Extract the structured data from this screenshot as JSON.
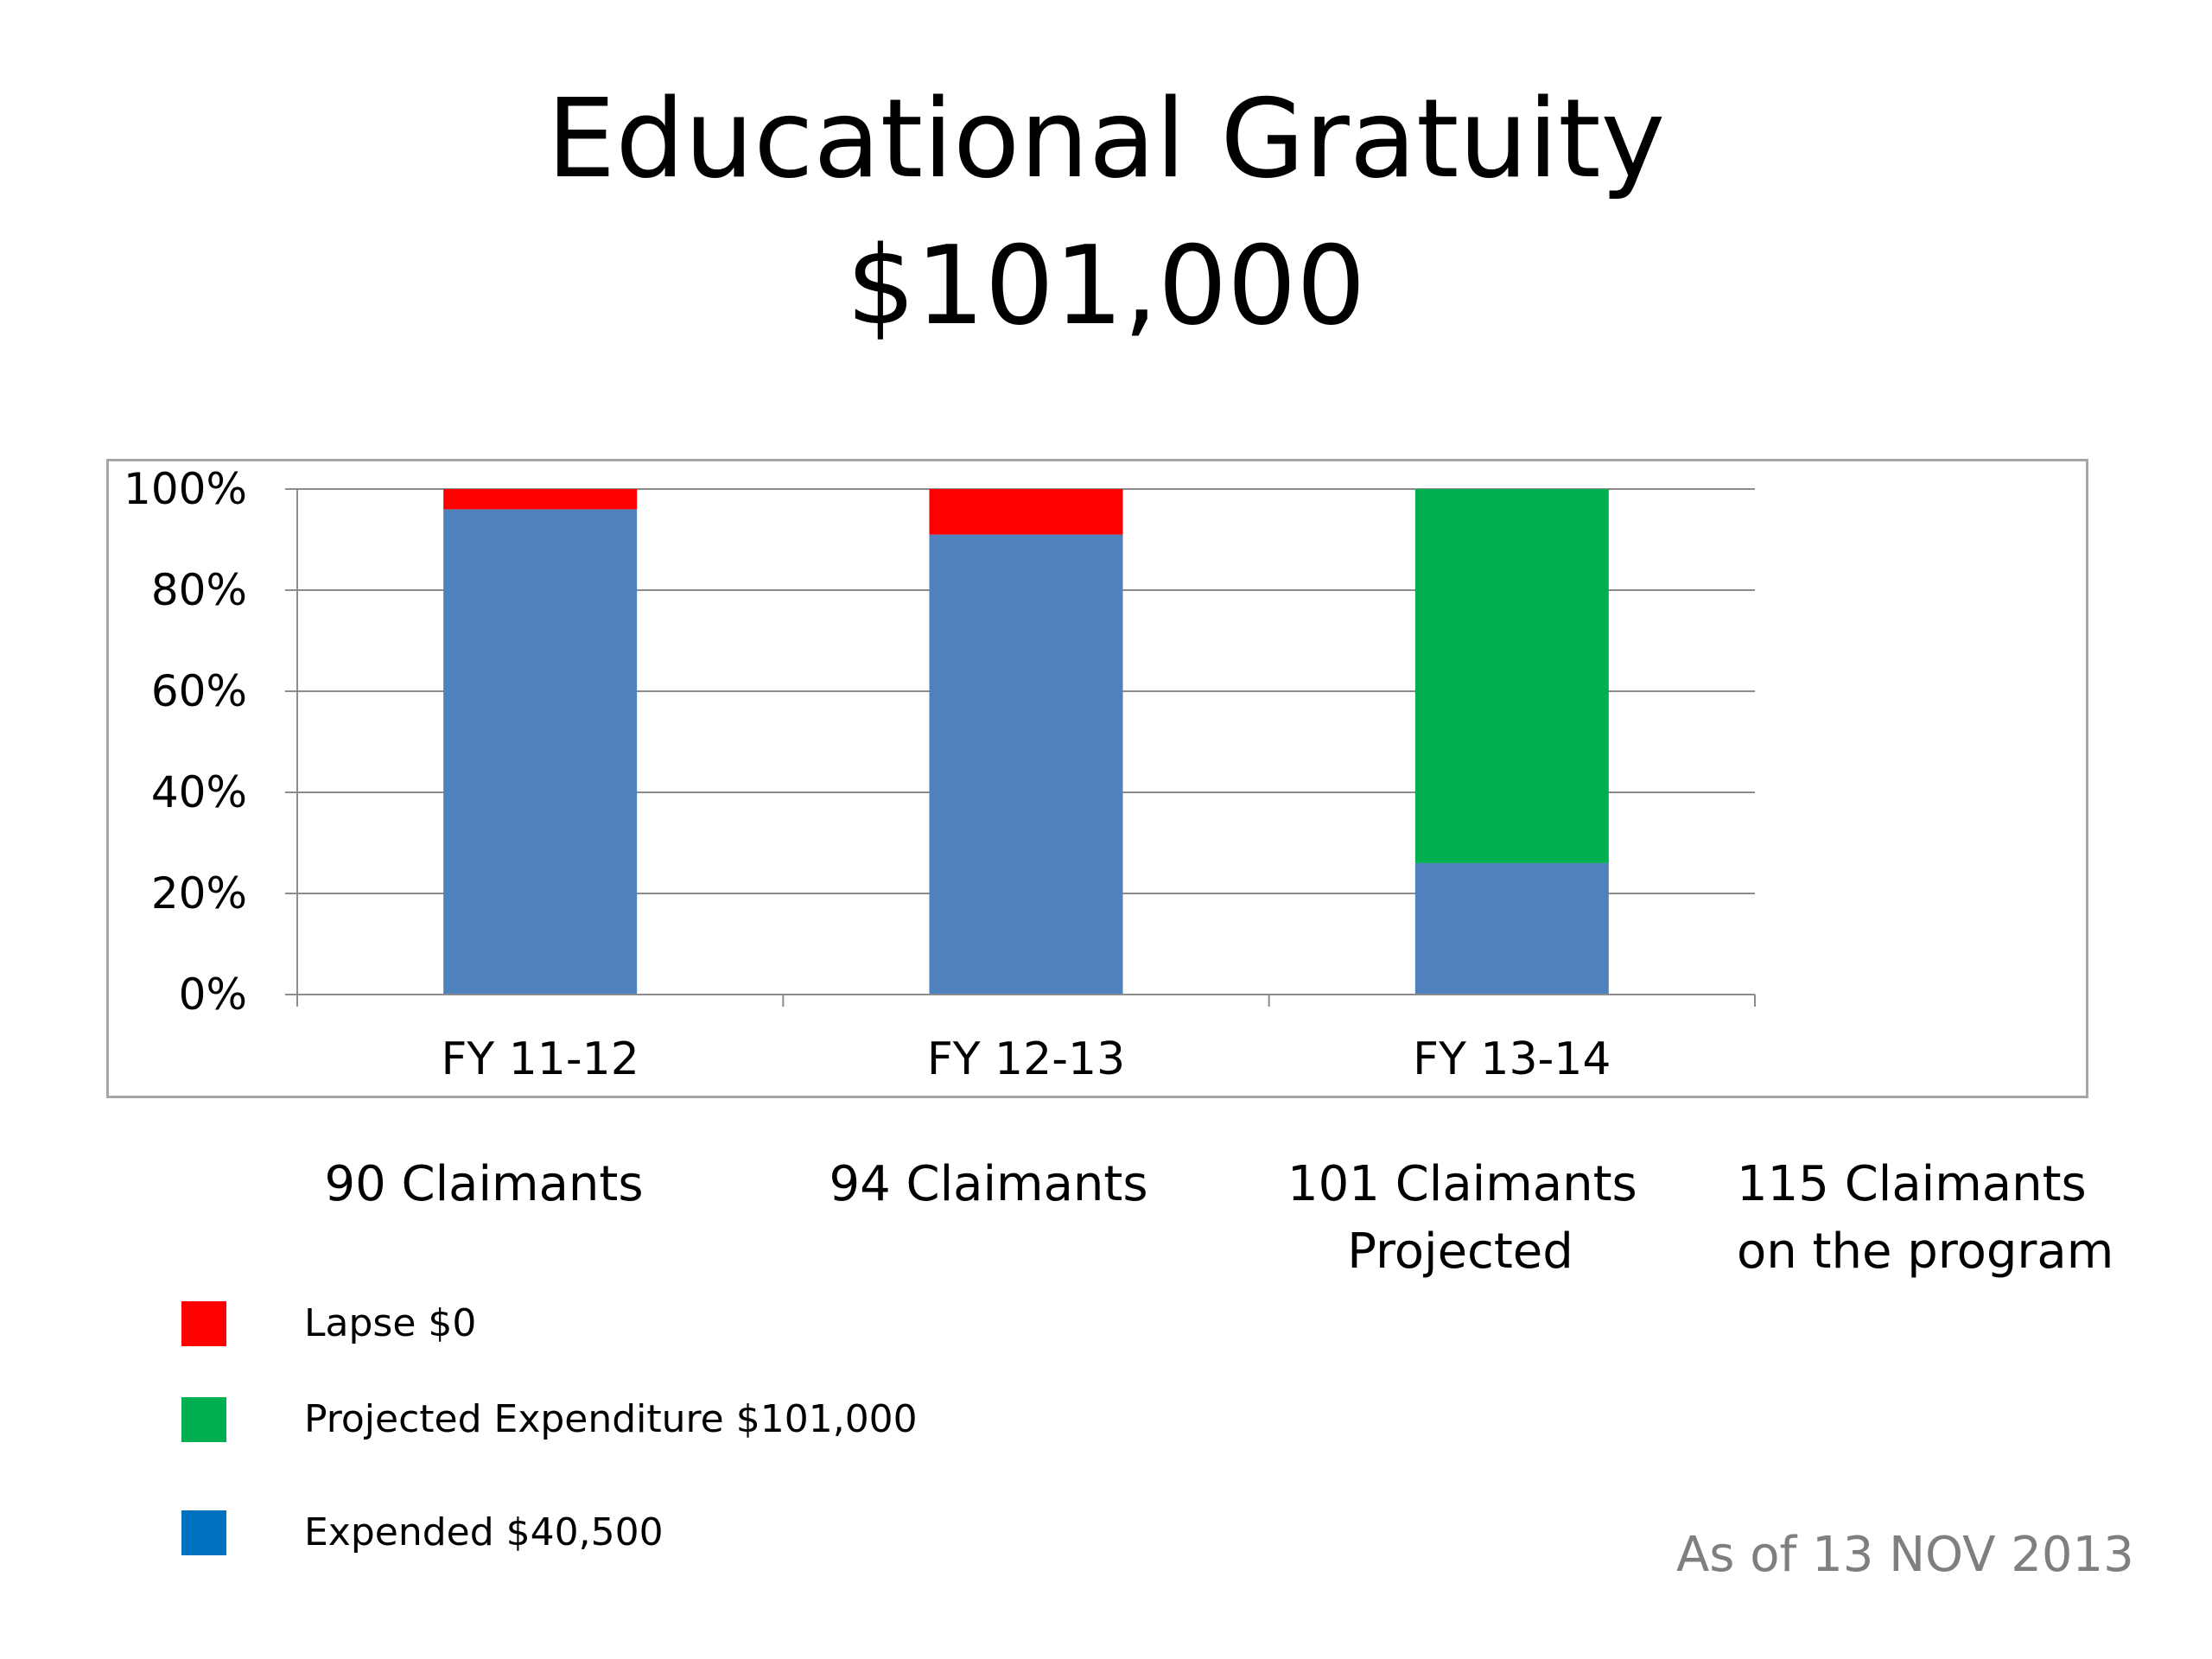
{
  "chart_data": {
    "type": "bar",
    "stacked": true,
    "title": "Educational Gratuity",
    "subtitle": "$101,000",
    "xlabel": "",
    "ylabel": "",
    "ylim": [
      0,
      100
    ],
    "yticks": [
      "0%",
      "20%",
      "40%",
      "60%",
      "80%",
      "100%"
    ],
    "categories": [
      "FY 11-12",
      "FY 12-13",
      "FY 13-14"
    ],
    "series": [
      {
        "name": "Expended $40,500",
        "color": "#4f81bd",
        "values": [
          96,
          91,
          26
        ]
      },
      {
        "name": "Projected Expenditure $101,000",
        "color": "#00b050",
        "values": [
          0,
          0,
          74
        ]
      },
      {
        "name": "Lapse $0",
        "color": "#ff0000",
        "values": [
          4,
          9,
          0
        ]
      }
    ],
    "grid": true,
    "legend_position": "bottom-left"
  },
  "notes": [
    {
      "line1": "90 Claimants",
      "line2": ""
    },
    {
      "line1": "94 Claimants",
      "line2": ""
    },
    {
      "line1": "101 Claimants",
      "line2": "Projected"
    },
    {
      "line1": "115 Claimants",
      "line2": "on the program"
    }
  ],
  "legend": [
    {
      "label": "Lapse $0",
      "color": "#ff0000"
    },
    {
      "label": "Projected Expenditure $101,000",
      "color": "#00b050"
    },
    {
      "label": "Expended $40,500",
      "color": "#0070c0"
    }
  ],
  "footer": {
    "as_of": "As of  13 NOV 2013"
  }
}
